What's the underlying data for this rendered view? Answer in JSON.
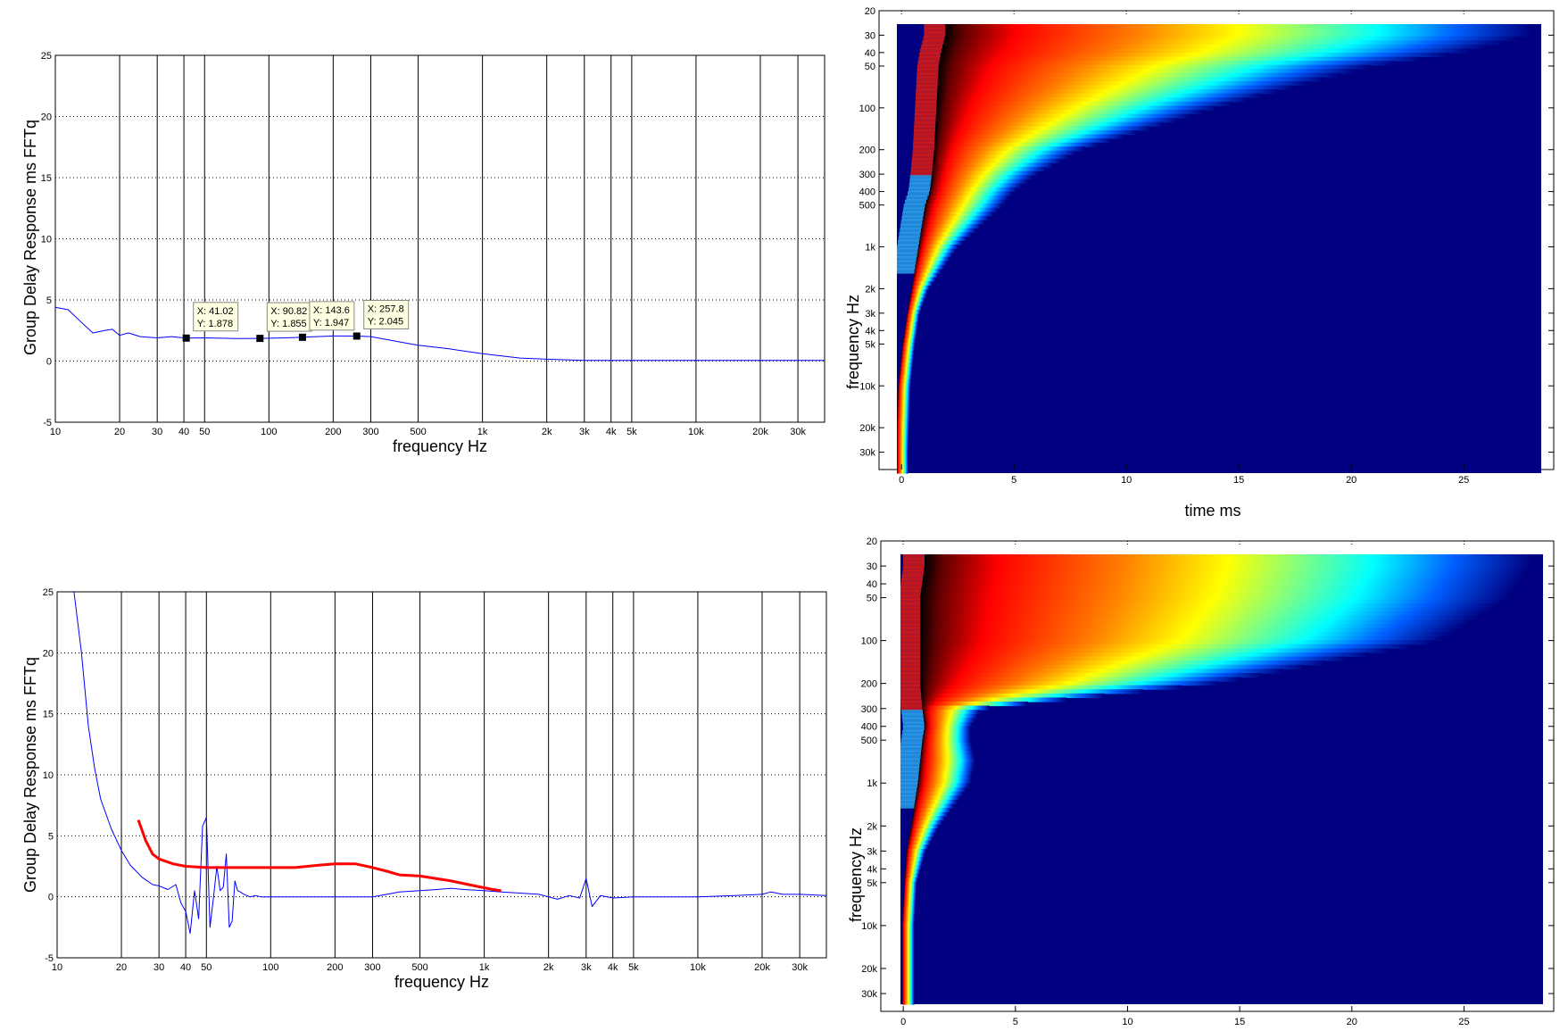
{
  "chart_data": [
    {
      "id": "gd1",
      "type": "line",
      "title": "",
      "xlabel": "frequency   Hz",
      "ylabel": "Group Delay Response ms   FFTq",
      "xscale": "log",
      "xlim": [
        10,
        40000
      ],
      "ylim": [
        -5,
        25
      ],
      "grid": "x solid, y dotted",
      "x_ticks": [
        10,
        20,
        30,
        40,
        50,
        100,
        200,
        300,
        500,
        1000,
        2000,
        3000,
        4000,
        5000,
        10000,
        20000,
        30000
      ],
      "x_tick_labels": [
        "10",
        "20",
        "30",
        "40",
        "50",
        "100",
        "200",
        "300",
        "500",
        "1k",
        "2k",
        "3k",
        "4k",
        "5k",
        "10k",
        "20k",
        "30k"
      ],
      "y_ticks": [
        -5,
        0,
        5,
        10,
        15,
        20,
        25
      ],
      "y_tick_labels": [
        "-5",
        "0",
        "5",
        "10",
        "15",
        "20",
        "25"
      ],
      "series": [
        {
          "color": "#0000ff",
          "x": [
            10,
            11.5,
            13,
            15,
            17,
            18.5,
            20,
            22,
            25,
            30,
            35,
            41,
            50,
            70,
            90,
            120,
            143.6,
            200,
            257.8,
            300,
            400,
            500,
            700,
            1000,
            1500,
            2000,
            3000,
            5000,
            10000,
            20000,
            30000,
            40000
          ],
          "y": [
            4.4,
            4.2,
            3.3,
            2.3,
            2.5,
            2.6,
            2.1,
            2.3,
            2.0,
            1.9,
            2.0,
            1.878,
            1.9,
            1.85,
            1.855,
            1.9,
            1.947,
            2.05,
            2.045,
            2.0,
            1.6,
            1.3,
            1.0,
            0.6,
            0.25,
            0.15,
            0.05,
            0.05,
            0.05,
            0.05,
            0.05,
            0.05
          ]
        }
      ],
      "datatips": [
        {
          "x": 41.02,
          "y": 1.878,
          "line1": "X: 41.02",
          "line2": "Y: 1.878"
        },
        {
          "x": 90.82,
          "y": 1.855,
          "line1": "X: 90.82",
          "line2": "Y: 1.855"
        },
        {
          "x": 143.6,
          "y": 1.947,
          "line1": "X: 143.6",
          "line2": "Y: 1.947"
        },
        {
          "x": 257.8,
          "y": 2.045,
          "line1": "X: 257.8",
          "line2": "Y: 2.045"
        }
      ]
    },
    {
      "id": "gd2",
      "type": "line",
      "title": "",
      "xlabel": "frequency   Hz",
      "ylabel": "Group Delay Response ms   FFTq",
      "xscale": "log",
      "xlim": [
        10,
        40000
      ],
      "ylim": [
        -5,
        25
      ],
      "grid": "x solid, y dotted",
      "x_ticks": [
        10,
        20,
        30,
        40,
        50,
        100,
        200,
        300,
        500,
        1000,
        2000,
        3000,
        4000,
        5000,
        10000,
        20000,
        30000
      ],
      "x_tick_labels": [
        "10",
        "20",
        "30",
        "40",
        "50",
        "100",
        "200",
        "300",
        "500",
        "1k",
        "2k",
        "3k",
        "4k",
        "5k",
        "10k",
        "20k",
        "30k"
      ],
      "y_ticks": [
        -5,
        0,
        5,
        10,
        15,
        20,
        25
      ],
      "y_tick_labels": [
        "-5",
        "0",
        "5",
        "10",
        "15",
        "20",
        "25"
      ],
      "series": [
        {
          "color": "#0000ff",
          "x": [
            12,
            13,
            14,
            15,
            16,
            18,
            20,
            22,
            25,
            28,
            30,
            33,
            36,
            38,
            40,
            42,
            44,
            46,
            48,
            50,
            52,
            54,
            56,
            58,
            60,
            62,
            64,
            66,
            68,
            70,
            72,
            75,
            80,
            85,
            90,
            100,
            120,
            150,
            200,
            250,
            300,
            350,
            400,
            500,
            600,
            700,
            800,
            1000,
            1200,
            1500,
            1800,
            2000,
            2200,
            2500,
            2800,
            3000,
            3200,
            3500,
            4000,
            5000,
            7000,
            10000,
            15000,
            20000,
            22000,
            25000,
            30000,
            40000
          ],
          "y": [
            25,
            20,
            14,
            10.5,
            8,
            5.5,
            3.8,
            2.6,
            1.6,
            1.0,
            0.9,
            0.6,
            1.0,
            -0.5,
            -1.2,
            -3.0,
            0.5,
            -1.8,
            5.8,
            6.5,
            -2.5,
            0.0,
            2.5,
            0.5,
            0.8,
            3.5,
            -2.5,
            -2.0,
            1.3,
            0.5,
            0.4,
            0.2,
            0.0,
            0.1,
            0.0,
            0.0,
            0.0,
            0.0,
            0.0,
            0.0,
            0.0,
            0.2,
            0.4,
            0.5,
            0.6,
            0.7,
            0.6,
            0.5,
            0.4,
            0.3,
            0.2,
            0.0,
            -0.2,
            0.1,
            -0.1,
            1.5,
            -0.8,
            0.1,
            -0.1,
            0.0,
            0.0,
            0.0,
            0.1,
            0.2,
            0.4,
            0.2,
            0.2,
            0.1
          ]
        },
        {
          "color": "#ff0000",
          "x": [
            24,
            26,
            28,
            30,
            35,
            40,
            50,
            70,
            100,
            130,
            170,
            200,
            250,
            300,
            350,
            400,
            500,
            700,
            900,
            1100,
            1200
          ],
          "y": [
            6.3,
            4.6,
            3.5,
            3.1,
            2.7,
            2.5,
            2.4,
            2.4,
            2.4,
            2.4,
            2.6,
            2.7,
            2.7,
            2.4,
            2.1,
            1.8,
            1.7,
            1.3,
            0.9,
            0.6,
            0.5
          ]
        }
      ]
    },
    {
      "id": "spec1",
      "type": "heatmap",
      "title": "",
      "xlabel": "time   ms",
      "ylabel": "frequency   Hz",
      "yscale": "log",
      "xlim": [
        -1,
        29
      ],
      "ylim": [
        20,
        40000
      ],
      "x_ticks": [
        0,
        5,
        10,
        15,
        20,
        25
      ],
      "x_tick_labels": [
        "0",
        "5",
        "10",
        "15",
        "20",
        "25"
      ],
      "y_ticks": [
        20,
        30,
        40,
        50,
        100,
        200,
        300,
        400,
        500,
        1000,
        2000,
        3000,
        4000,
        5000,
        10000,
        20000,
        30000
      ],
      "y_tick_labels": [
        "20",
        "30",
        "40",
        "50",
        "100",
        "200",
        "300",
        "400",
        "500",
        "1k",
        "2k",
        "3k",
        "4k",
        "5k",
        "10k",
        "20k",
        "30k"
      ],
      "colormap": "jet",
      "background_color": "#000080",
      "ridge_freq": [
        30,
        40,
        50,
        100,
        200,
        300,
        400,
        500,
        1000,
        2000,
        3000,
        5000,
        10000,
        30000
      ],
      "ridge_time_ms": [
        2.2,
        2.0,
        1.9,
        1.8,
        1.7,
        1.6,
        1.5,
        1.3,
        1.0,
        0.7,
        0.5,
        0.3,
        0.1,
        0.0
      ],
      "decay_edge_time_ms": [
        28,
        25,
        21,
        14,
        8,
        6,
        5,
        4.5,
        2.5,
        1.2,
        0.8,
        0.5,
        0.3,
        0.1
      ]
    },
    {
      "id": "spec2",
      "type": "heatmap",
      "title": "",
      "xlabel": "",
      "ylabel": "frequency   Hz",
      "yscale": "log",
      "xlim": [
        -1,
        29
      ],
      "ylim": [
        20,
        40000
      ],
      "x_ticks": [
        0,
        5,
        10,
        15,
        20,
        25
      ],
      "x_tick_labels": [
        "0",
        "5",
        "10",
        "15",
        "20",
        "25"
      ],
      "y_ticks": [
        20,
        30,
        40,
        50,
        100,
        200,
        300,
        400,
        500,
        1000,
        2000,
        3000,
        4000,
        5000,
        10000,
        20000,
        30000
      ],
      "y_tick_labels": [
        "20",
        "30",
        "40",
        "50",
        "100",
        "200",
        "300",
        "400",
        "500",
        "1k",
        "2k",
        "3k",
        "4k",
        "5k",
        "10k",
        "20k",
        "30k"
      ],
      "colormap": "jet",
      "background_color": "#000080",
      "ridge_freq": [
        30,
        50,
        100,
        200,
        300,
        400,
        500,
        700,
        1000,
        2000,
        3000,
        5000,
        10000,
        30000
      ],
      "ridge_time_ms": [
        1.2,
        1.0,
        1.0,
        1.0,
        1.1,
        1.2,
        1.1,
        1.0,
        0.9,
        0.6,
        0.4,
        0.3,
        0.2,
        0.2
      ],
      "decay_edge_time_ms": [
        28,
        27,
        24,
        14,
        3.5,
        3.0,
        3.0,
        3.2,
        3.0,
        1.6,
        1.0,
        0.6,
        0.4,
        0.3
      ]
    }
  ]
}
